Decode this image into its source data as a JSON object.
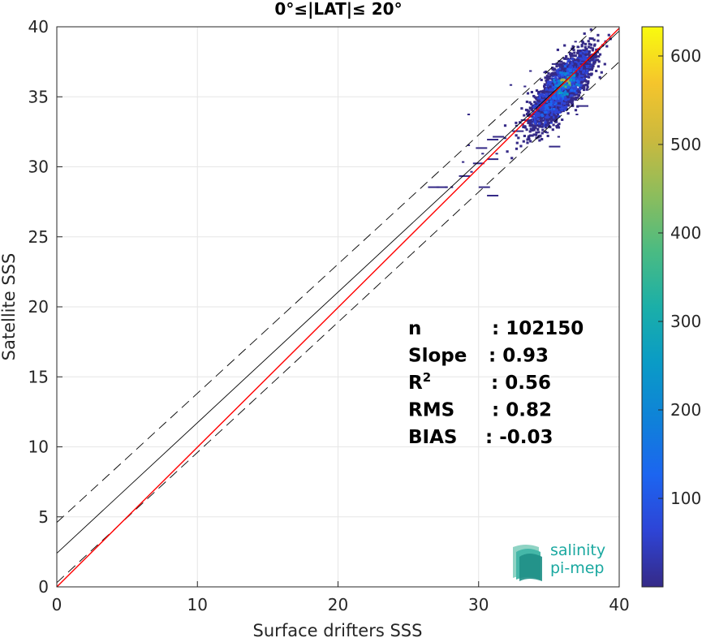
{
  "chart_data": {
    "type": "heatmap",
    "title": "0°≤|LAT|≤ 20°",
    "xlabel": "Surface drifters SSS",
    "ylabel": "Satellite SSS",
    "xlim": [
      0,
      40
    ],
    "ylim": [
      0,
      40
    ],
    "xticks": [
      "0",
      "10",
      "20",
      "30",
      "40"
    ],
    "yticks": [
      "0",
      "5",
      "10",
      "15",
      "20",
      "25",
      "30",
      "35",
      "40"
    ],
    "grid": true,
    "colorbar": {
      "range": [
        0,
        633
      ],
      "ticks": [
        "100",
        "200",
        "300",
        "400",
        "500",
        "600"
      ],
      "tick_values": [
        100,
        200,
        300,
        400,
        500,
        600
      ],
      "colormap": "parula"
    },
    "lines": [
      {
        "name": "1:1",
        "color": "#000000",
        "style": "solid",
        "points": [
          [
            0,
            2.4
          ],
          [
            40,
            39.7
          ]
        ]
      },
      {
        "name": "upper",
        "color": "#000000",
        "style": "dashed",
        "points": [
          [
            0,
            4.6
          ],
          [
            40,
            41.5
          ]
        ]
      },
      {
        "name": "lower",
        "color": "#000000",
        "style": "dashed",
        "points": [
          [
            0,
            0.3
          ],
          [
            40,
            37.5
          ]
        ]
      },
      {
        "name": "fit",
        "color": "#ff0000",
        "style": "solid",
        "points": [
          [
            0,
            0
          ],
          [
            40,
            39.9
          ]
        ]
      }
    ],
    "density": {
      "center": [
        35.8,
        35.6
      ],
      "spread": [
        1.4,
        1.1
      ],
      "cells": [
        [
          36.0,
          36.2,
          0.9
        ],
        [
          36.2,
          36.0,
          0.75
        ],
        [
          35.8,
          35.8,
          0.65
        ],
        [
          36.4,
          36.4,
          0.55
        ],
        [
          35.6,
          35.6,
          0.5
        ],
        [
          36.1,
          35.4,
          0.45
        ],
        [
          35.4,
          36.0,
          0.4
        ],
        [
          36.6,
          36.8,
          0.38
        ],
        [
          35.2,
          35.2,
          0.3
        ],
        [
          36.8,
          36.2,
          0.3
        ],
        [
          35.0,
          34.8,
          0.25
        ],
        [
          34.8,
          34.4,
          0.22
        ],
        [
          34.6,
          34.0,
          0.18
        ],
        [
          36.3,
          37.0,
          0.2
        ],
        [
          35.9,
          36.6,
          0.35
        ],
        [
          36.5,
          35.7,
          0.28
        ]
      ],
      "scattered": [
        [
          29.6,
          30.3
        ],
        [
          30.2,
          31.0
        ],
        [
          29.8,
          31.4
        ],
        [
          31.2,
          31.0
        ],
        [
          31.8,
          32.1
        ],
        [
          32.4,
          32.6
        ],
        [
          33.0,
          33.4
        ],
        [
          29.4,
          29.7
        ],
        [
          30.0,
          28.6
        ],
        [
          30.6,
          28.0
        ],
        [
          28.6,
          29.4
        ],
        [
          27.6,
          28.6
        ],
        [
          28.0,
          28.6
        ],
        [
          26.4,
          28.6
        ],
        [
          27.0,
          28.6
        ],
        [
          29.2,
          31.6
        ],
        [
          30.6,
          32.0
        ],
        [
          34.0,
          33.0
        ],
        [
          34.8,
          32.5
        ],
        [
          35.6,
          32.2
        ],
        [
          35.0,
          31.5
        ],
        [
          34.6,
          35.4
        ],
        [
          34.2,
          34.8
        ],
        [
          33.6,
          34.2
        ],
        [
          33.2,
          35.8
        ],
        [
          32.2,
          35.9
        ],
        [
          37.0,
          38.6
        ],
        [
          36.8,
          39.0
        ],
        [
          36.4,
          38.2
        ],
        [
          37.2,
          37.4
        ],
        [
          35.2,
          37.4
        ],
        [
          34.6,
          36.8
        ],
        [
          33.6,
          36.9
        ],
        [
          36.9,
          33.8
        ],
        [
          37.0,
          34.4
        ],
        [
          29.2,
          33.8
        ],
        [
          30.6,
          30.6
        ],
        [
          31.0,
          32.2
        ],
        [
          32.6,
          33.0
        ],
        [
          28.8,
          30.4
        ]
      ]
    },
    "stats": [
      {
        "label": "n",
        "value": ": 102150"
      },
      {
        "label": "Slope",
        "value": ": 0.93"
      },
      {
        "label": "R",
        "sup": "2",
        "value": ": 0.56"
      },
      {
        "label": "RMS",
        "value": ": 0.82"
      },
      {
        "label": "BIAS",
        "value": ": -0.03"
      }
    ]
  },
  "logo": {
    "line1": "salinity",
    "line2": "pi-mep"
  }
}
